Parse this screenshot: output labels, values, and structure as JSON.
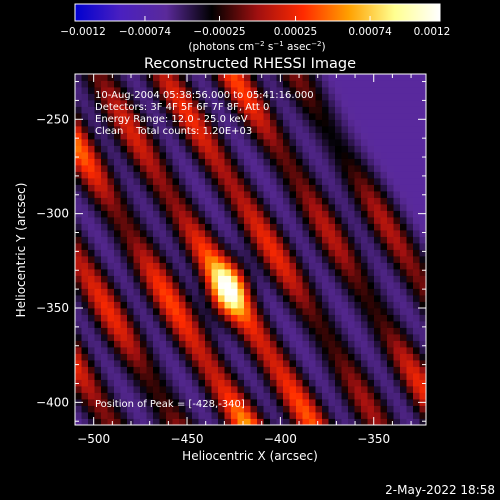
{
  "chart_data": {
    "type": "heatmap",
    "title": "Reconstructed RHESSI Image",
    "xlabel": "Heliocentric X (arcsec)",
    "ylabel": "Heliocentric Y (arcsec)",
    "xlim": [
      -510,
      -322
    ],
    "ylim": [
      -412,
      -226
    ],
    "x_ticks": [
      {
        "value": -500,
        "label": "−500"
      },
      {
        "value": -450,
        "label": "−450"
      },
      {
        "value": -400,
        "label": "−400"
      },
      {
        "value": -350,
        "label": "−350"
      }
    ],
    "y_ticks": [
      {
        "value": -250,
        "label": "−250"
      },
      {
        "value": -300,
        "label": "−300"
      },
      {
        "value": -350,
        "label": "−350"
      },
      {
        "value": -400,
        "label": "−400"
      }
    ],
    "colorbar": {
      "min": -0.0012,
      "max": 0.0012,
      "ticks": [
        {
          "value": -0.0012,
          "label": "−0.0012"
        },
        {
          "value": -0.00074,
          "label": "−0.00074"
        },
        {
          "value": -0.00025,
          "label": "−0.00025"
        },
        {
          "value": 0.00025,
          "label": "0.00025"
        },
        {
          "value": 0.00074,
          "label": "0.00074"
        },
        {
          "value": 0.0012,
          "label": "0.0012"
        }
      ],
      "unit_main": "(photons cm",
      "unit_sup1": "−2",
      "unit_mid1": " s",
      "unit_sup2": "−1",
      "unit_mid2": " asec",
      "unit_sup3": "−2",
      "unit_end": ")",
      "colormap": [
        "#0000d0",
        "#4a20c0",
        "#5a2a9a",
        "#000000",
        "#a01010",
        "#ff2a00",
        "#ffa000",
        "#ffff90",
        "#ffffff"
      ]
    },
    "annotations": [
      "10-Aug-2004 05:38:56.000 to 05:41:16.000",
      "Detectors: 3F 4F 5F 6F 7F 8F, Att 0",
      "Energy Range: 12.0 - 25.0 keV",
      "Clean    Total counts: 1.20E+03"
    ],
    "peak_label": "Position of Peak = [-428,-340]",
    "peak": {
      "x": -428,
      "y": -340
    },
    "ridges": [
      {
        "offset": -155,
        "amp": 0.9
      },
      {
        "offset": -118,
        "amp": 0.75
      },
      {
        "offset": -82,
        "amp": 0.85
      },
      {
        "offset": -45,
        "amp": 1.0
      },
      {
        "offset": -10,
        "amp": 0.85
      },
      {
        "offset": 26,
        "amp": 0.7
      },
      {
        "offset": 62,
        "amp": 0.75
      },
      {
        "offset": 96,
        "amp": 0.6
      }
    ],
    "timestamp": "2-May-2022 18:58"
  }
}
